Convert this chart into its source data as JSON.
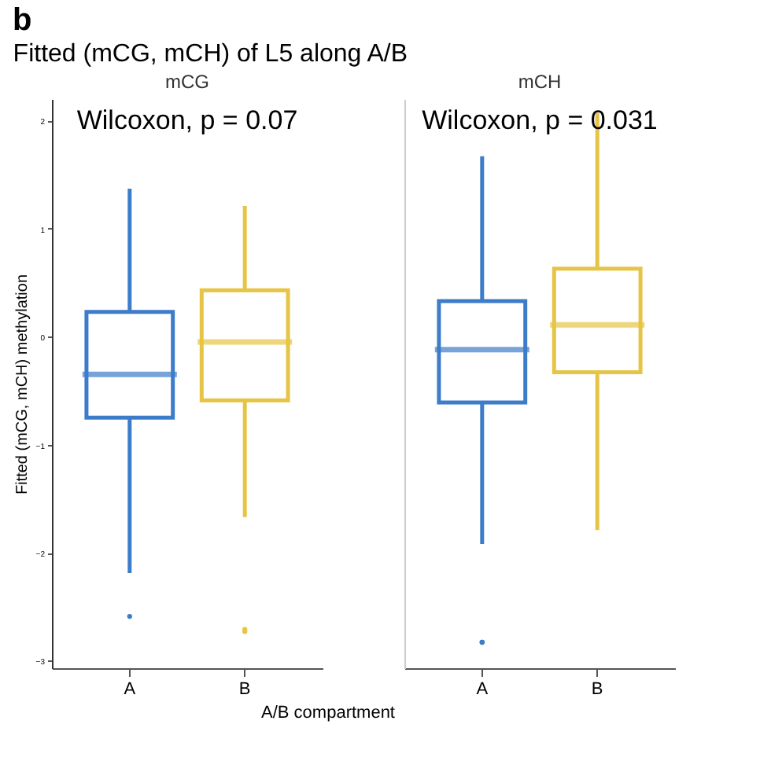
{
  "chart_data": [
    {
      "type": "box",
      "title": "Fitted (mCG, mCH) of L5 along A/B",
      "subtitle": "mCG",
      "annotations": [
        "b",
        "Wilcoxon, p = 0.07"
      ],
      "xlabel": "A/B compartment",
      "ylabel": "Fitted (mCG, mCH) methylation",
      "categories": [
        "A",
        "B"
      ],
      "colors": [
        "#3d7cc9",
        "#e6c445"
      ],
      "boxes": [
        {
          "low": -2.19,
          "q1": -0.75,
          "median": -0.35,
          "q3": 0.23,
          "high": 1.37,
          "outliers": [
            -2.59
          ]
        },
        {
          "low": -1.67,
          "q1": -0.59,
          "median": -0.05,
          "q3": 0.43,
          "high": 1.21,
          "outliers": [
            -2.71,
            -2.73
          ]
        }
      ],
      "ylim": [
        -3.07,
        2.2
      ],
      "yticks": [
        -3,
        -2,
        -1,
        0,
        1,
        2
      ]
    },
    {
      "type": "box",
      "subtitle": "mCH",
      "annotations": [
        "Wilcoxon, p = 0.031"
      ],
      "categories": [
        "A",
        "B"
      ],
      "colors": [
        "#3d7cc9",
        "#e6c445"
      ],
      "boxes": [
        {
          "low": -1.92,
          "q1": -0.61,
          "median": -0.12,
          "q3": 0.33,
          "high": 1.67,
          "outliers": [
            -2.83,
            -2.83
          ]
        },
        {
          "low": -1.79,
          "q1": -0.33,
          "median": 0.11,
          "q3": 0.63,
          "high": 2.07
        }
      ],
      "ylim": [
        -3.07,
        2.2
      ],
      "tick_labels": "x"
    }
  ]
}
